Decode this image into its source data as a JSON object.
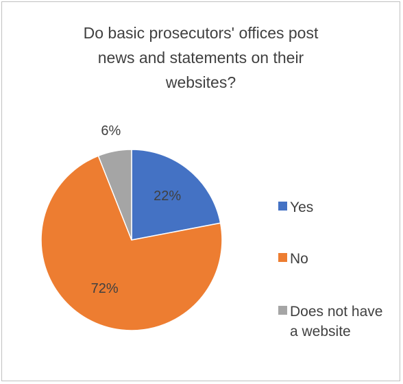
{
  "chart_data": {
    "type": "pie",
    "title_lines": [
      "Do basic prosecutors' offices post",
      "news and statements on their",
      "websites?"
    ],
    "slices": [
      {
        "label": "Yes",
        "value": 22,
        "display": "22%",
        "color": "#4472c4"
      },
      {
        "label": "No",
        "value": 72,
        "display": "72%",
        "color": "#ed7d31"
      },
      {
        "label": "Does not have a website",
        "value": 6,
        "display": "6%",
        "color": "#a5a5a5"
      }
    ],
    "legend": {
      "position": "right",
      "entries": [
        {
          "lines": [
            "Yes"
          ]
        },
        {
          "lines": [
            "No"
          ]
        },
        {
          "lines": [
            "Does not have",
            "a website"
          ]
        }
      ]
    }
  }
}
